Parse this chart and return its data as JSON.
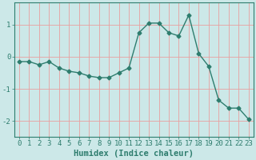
{
  "xlabel": "Humidex (Indice chaleur)",
  "ylabel": "",
  "x": [
    0,
    1,
    2,
    3,
    4,
    5,
    6,
    7,
    8,
    9,
    10,
    11,
    12,
    13,
    14,
    15,
    16,
    17,
    18,
    19,
    20,
    21,
    22,
    23
  ],
  "y": [
    -0.15,
    -0.15,
    -0.25,
    -0.15,
    -0.35,
    -0.45,
    -0.5,
    -0.6,
    -0.65,
    -0.65,
    -0.5,
    -0.35,
    0.75,
    1.05,
    1.05,
    0.75,
    0.65,
    1.3,
    0.1,
    -0.3,
    -1.35,
    -1.6,
    -1.6,
    -1.95
  ],
  "line_color": "#2e7d6e",
  "marker": "D",
  "marker_size": 2.5,
  "bg_color": "#cce8e8",
  "grid_color": "#e8a0a0",
  "axes_color": "#2e7d6e",
  "tick_color": "#2e7d6e",
  "ylim": [
    -2.5,
    1.7
  ],
  "yticks": [
    -2,
    -1,
    0,
    1
  ],
  "xlim": [
    -0.5,
    23.5
  ],
  "xticks": [
    0,
    1,
    2,
    3,
    4,
    5,
    6,
    7,
    8,
    9,
    10,
    11,
    12,
    13,
    14,
    15,
    16,
    17,
    18,
    19,
    20,
    21,
    22,
    23
  ],
  "xlabel_fontsize": 7.5,
  "tick_fontsize": 6.5,
  "line_width": 1.0
}
